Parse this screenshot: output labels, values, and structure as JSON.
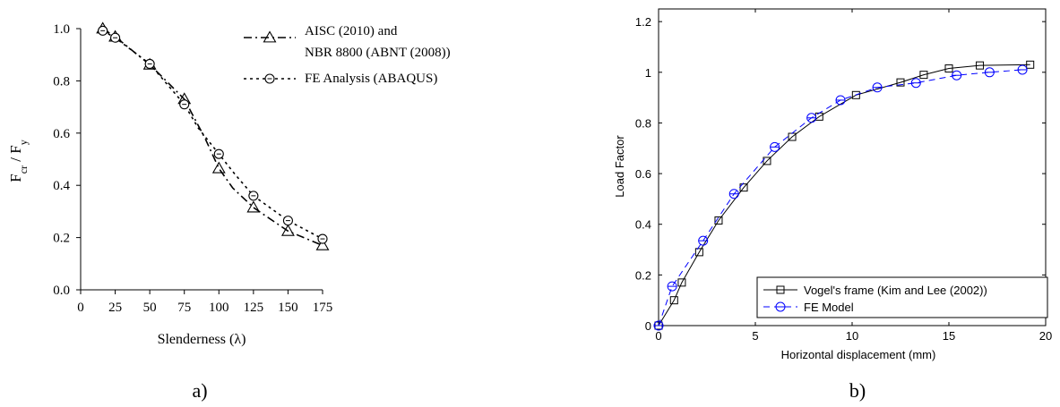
{
  "chart_data": [
    {
      "panel_label": "a)",
      "type": "line",
      "xlabel": "Slenderness (λ)",
      "ylabel": "Fcr / Fy",
      "ylabel_parts": {
        "f1": "F",
        "s1": "cr",
        "sep": " / ",
        "f2": "F",
        "s2": "y"
      },
      "xlim": [
        0,
        175
      ],
      "ylim": [
        0,
        1.0
      ],
      "xticks": [
        "0",
        "25",
        "50",
        "75",
        "100",
        "125",
        "150",
        "175"
      ],
      "yticks": [
        "0.0",
        "0.2",
        "0.4",
        "0.6",
        "0.8",
        "1.0"
      ],
      "grid": false,
      "legend_position": "top-right",
      "series": [
        {
          "name": "AISC (2010) and NBR 8800 (ABNT (2008))",
          "name_lines": [
            "AISC (2010) and",
            "NBR 8800 (ABNT (2008))"
          ],
          "marker": "triangle",
          "line_style": "dash-dot",
          "color": "#000000",
          "line": [
            [
              16,
              1.0
            ],
            [
              25,
              0.969
            ],
            [
              50,
              0.862
            ],
            [
              60,
              0.81
            ],
            [
              75,
              0.73
            ],
            [
              80,
              0.68
            ],
            [
              90,
              0.58
            ],
            [
              100,
              0.465
            ],
            [
              110,
              0.39
            ],
            [
              125,
              0.315
            ],
            [
              150,
              0.225
            ],
            [
              175,
              0.17
            ]
          ],
          "marks": [
            [
              16,
              1.0
            ],
            [
              25,
              0.969
            ],
            [
              50,
              0.862
            ],
            [
              75,
              0.73
            ],
            [
              100,
              0.465
            ],
            [
              125,
              0.315
            ],
            [
              150,
              0.225
            ],
            [
              175,
              0.17
            ]
          ]
        },
        {
          "name": "FE Analysis (ABAQUS)",
          "name_lines": [
            "FE Analysis (ABAQUS)"
          ],
          "marker": "circle",
          "line_style": "dotted",
          "color": "#000000",
          "line": [
            [
              16,
              0.992
            ],
            [
              25,
              0.965
            ],
            [
              50,
              0.865
            ],
            [
              75,
              0.71
            ],
            [
              85,
              0.62
            ],
            [
              100,
              0.52
            ],
            [
              112,
              0.44
            ],
            [
              125,
              0.36
            ],
            [
              150,
              0.265
            ],
            [
              175,
              0.195
            ]
          ],
          "marks": [
            [
              16,
              0.992
            ],
            [
              25,
              0.965
            ],
            [
              50,
              0.865
            ],
            [
              75,
              0.71
            ],
            [
              100,
              0.52
            ],
            [
              125,
              0.36
            ],
            [
              150,
              0.265
            ],
            [
              175,
              0.195
            ]
          ]
        }
      ]
    },
    {
      "panel_label": "b)",
      "type": "line",
      "xlabel": "Horizontal displacement (mm)",
      "ylabel": "Load Factor",
      "xlim": [
        0,
        20
      ],
      "ylim": [
        0,
        1.25
      ],
      "xticks": [
        "0",
        "5",
        "10",
        "15",
        "20"
      ],
      "yticks": [
        "0",
        "0.2",
        "0.4",
        "0.6",
        "0.8",
        "1",
        "1.2"
      ],
      "grid": false,
      "legend_position": "bottom-right",
      "series": [
        {
          "name": "Vogel's frame (Kim and Lee (2002))",
          "marker": "square",
          "line_style": "solid",
          "color": "#000000",
          "line": [
            [
              0,
              0
            ],
            [
              0.8,
              0.1
            ],
            [
              1.2,
              0.17
            ],
            [
              2.1,
              0.29
            ],
            [
              3.1,
              0.415
            ],
            [
              4.4,
              0.545
            ],
            [
              5.6,
              0.65
            ],
            [
              6.9,
              0.745
            ],
            [
              8.3,
              0.825
            ],
            [
              10.2,
              0.91
            ],
            [
              12.5,
              0.96
            ],
            [
              13.7,
              0.99
            ],
            [
              15.0,
              1.015
            ],
            [
              16.6,
              1.027
            ],
            [
              19.2,
              1.03
            ]
          ],
          "marks": [
            [
              0,
              0
            ],
            [
              0.8,
              0.1
            ],
            [
              1.2,
              0.17
            ],
            [
              2.1,
              0.29
            ],
            [
              3.1,
              0.415
            ],
            [
              4.4,
              0.545
            ],
            [
              5.6,
              0.65
            ],
            [
              6.9,
              0.745
            ],
            [
              8.3,
              0.825
            ],
            [
              10.2,
              0.91
            ],
            [
              12.5,
              0.96
            ],
            [
              13.7,
              0.99
            ],
            [
              15.0,
              1.015
            ],
            [
              16.6,
              1.027
            ],
            [
              19.2,
              1.03
            ]
          ]
        },
        {
          "name": "FE Model",
          "marker": "circle",
          "line_style": "dashed",
          "color": "#0000ff",
          "line": [
            [
              0,
              0
            ],
            [
              0.7,
              0.155
            ],
            [
              2.3,
              0.335
            ],
            [
              3.9,
              0.52
            ],
            [
              6.0,
              0.705
            ],
            [
              7.9,
              0.82
            ],
            [
              9.4,
              0.89
            ],
            [
              11.3,
              0.94
            ],
            [
              13.3,
              0.958
            ],
            [
              15.4,
              0.988
            ],
            [
              17.1,
              1.0
            ],
            [
              18.8,
              1.01
            ]
          ],
          "marks": [
            [
              0,
              0
            ],
            [
              0.7,
              0.155
            ],
            [
              2.3,
              0.335
            ],
            [
              3.9,
              0.52
            ],
            [
              6.0,
              0.705
            ],
            [
              7.9,
              0.82
            ],
            [
              9.4,
              0.89
            ],
            [
              11.3,
              0.94
            ],
            [
              13.3,
              0.958
            ],
            [
              15.4,
              0.988
            ],
            [
              17.1,
              1.0
            ],
            [
              18.8,
              1.01
            ]
          ]
        }
      ]
    }
  ]
}
